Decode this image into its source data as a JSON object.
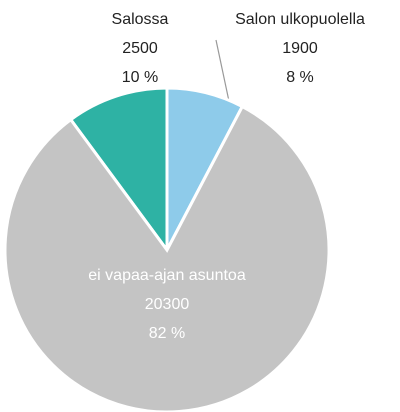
{
  "chart_data": {
    "type": "pie",
    "categories": [
      "Salossa",
      "Salon ulkopuolella",
      "ei vapaa-ajan asuntoa"
    ],
    "values": [
      2500,
      1900,
      20300
    ],
    "percent_labels": [
      "10 %",
      "8 %",
      "82 %"
    ],
    "colors": [
      "#2eb2a4",
      "#8ecbea",
      "#c4c4c4"
    ]
  }
}
